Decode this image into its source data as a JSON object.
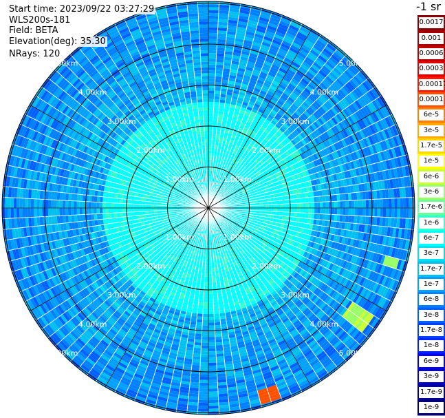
{
  "header": {
    "start_time": "Start time: 2023/09/22 03:27:29",
    "instrument": "WLS200s-181",
    "field": "Field: BETA",
    "elevation": "Elevation(deg): 35.30",
    "nrays": "NRays: 120"
  },
  "chart_data": {
    "type": "heatmap",
    "subtype": "polar-ppi",
    "rings_km": [
      1,
      2,
      3,
      4,
      5
    ],
    "ring_labels": [
      "1.00km",
      "2.00km",
      "3.00km",
      "4.00km",
      "5.00km"
    ],
    "nrays": 120,
    "spokes_deg_step": 30,
    "colorbar": {
      "unit_label": "-1 sr",
      "ticks": [
        "0.0017",
        "0.001",
        "0.0006",
        "0.0003",
        "0.00017",
        "0.0001",
        "6e-5",
        "3e-5",
        "1.7e-5",
        "1e-5",
        "6e-6",
        "3e-6",
        "1.7e-6",
        "1e-6",
        "6e-7",
        "3e-7",
        "1.7e-7",
        "1e-7",
        "6e-8",
        "3e-8",
        "1.7e-8",
        "1e-8",
        "6e-9",
        "3e-9",
        "1.7e-9",
        "1e-9"
      ],
      "colors": [
        "#8b0000",
        "#a40000",
        "#c00000",
        "#e00000",
        "#ff1a00",
        "#ff5000",
        "#ff7f00",
        "#ffaa00",
        "#ffd400",
        "#ffff00",
        "#ccff33",
        "#99ff66",
        "#66ff99",
        "#33ffcc",
        "#00ffff",
        "#00e0f0",
        "#00c0f0",
        "#00a0ff",
        "#0080ff",
        "#0060ff",
        "#0040ff",
        "#0020ff",
        "#0000f0",
        "#0000c8",
        "#00009a",
        "#000070"
      ]
    }
  }
}
